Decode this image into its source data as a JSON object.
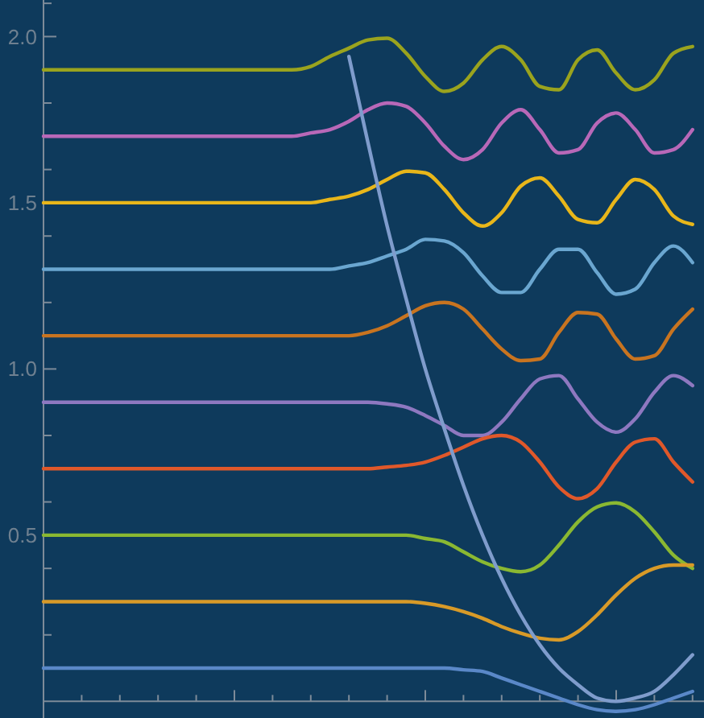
{
  "chart_data": {
    "type": "line",
    "tick_labels": "y",
    "categories": [
      null,
      null,
      null,
      null,
      null,
      null,
      null,
      null,
      null,
      null,
      null,
      null,
      null,
      null,
      null,
      null,
      null,
      null,
      null,
      null,
      null,
      null,
      null,
      null,
      null,
      null,
      null,
      null,
      null,
      null,
      null,
      null,
      null,
      null,
      null
    ],
    "ylim": [
      -0.05,
      2.11
    ],
    "yticks": [
      {
        "value": 0.1,
        "label": null
      },
      {
        "value": 0.2,
        "label": null
      },
      {
        "value": 0.3,
        "label": null
      },
      {
        "value": 0.4,
        "label": null
      },
      {
        "value": 0.5,
        "label": "0.5"
      },
      {
        "value": 0.6,
        "label": null
      },
      {
        "value": 0.7,
        "label": null
      },
      {
        "value": 0.8,
        "label": null
      },
      {
        "value": 0.9,
        "label": null
      },
      {
        "value": 1.0,
        "label": "1.0"
      },
      {
        "value": 1.1,
        "label": null
      },
      {
        "value": 1.2,
        "label": null
      },
      {
        "value": 1.3,
        "label": null
      },
      {
        "value": 1.4,
        "label": null
      },
      {
        "value": 1.5,
        "label": "1.5"
      },
      {
        "value": 1.6,
        "label": null
      },
      {
        "value": 1.7,
        "label": null
      },
      {
        "value": 1.8,
        "label": null
      },
      {
        "value": 1.9,
        "label": null
      },
      {
        "value": 2.0,
        "label": "2.0"
      },
      {
        "value": 2.1,
        "label": null
      }
    ],
    "series": [
      {
        "color": "#9aa31e",
        "values": [
          1.9,
          1.9,
          1.9,
          1.9,
          1.9,
          1.9,
          1.9,
          1.9,
          1.9,
          1.9,
          1.9,
          1.9,
          1.9,
          1.9,
          1.91,
          1.94,
          1.965,
          1.99,
          1.995,
          1.95,
          1.88,
          1.835,
          1.86,
          1.93,
          1.97,
          1.93,
          1.85,
          1.84,
          1.93,
          1.96,
          1.89,
          1.84,
          1.87,
          1.95,
          1.97
        ]
      },
      {
        "color": "#b868b8",
        "values": [
          1.7,
          1.7,
          1.7,
          1.7,
          1.7,
          1.7,
          1.7,
          1.7,
          1.7,
          1.7,
          1.7,
          1.7,
          1.7,
          1.7,
          1.71,
          1.72,
          1.745,
          1.78,
          1.8,
          1.79,
          1.74,
          1.67,
          1.63,
          1.66,
          1.74,
          1.78,
          1.72,
          1.65,
          1.66,
          1.74,
          1.77,
          1.72,
          1.65,
          1.66,
          1.72
        ]
      },
      {
        "color": "#e8b61a",
        "values": [
          1.5,
          1.5,
          1.5,
          1.5,
          1.5,
          1.5,
          1.5,
          1.5,
          1.5,
          1.5,
          1.5,
          1.5,
          1.5,
          1.5,
          1.5,
          1.51,
          1.52,
          1.54,
          1.57,
          1.595,
          1.59,
          1.54,
          1.47,
          1.43,
          1.47,
          1.55,
          1.575,
          1.52,
          1.45,
          1.44,
          1.51,
          1.57,
          1.54,
          1.46,
          1.435
        ]
      },
      {
        "color": "#6aa6d0",
        "values": [
          1.3,
          1.3,
          1.3,
          1.3,
          1.3,
          1.3,
          1.3,
          1.3,
          1.3,
          1.3,
          1.3,
          1.3,
          1.3,
          1.3,
          1.3,
          1.3,
          1.31,
          1.32,
          1.34,
          1.36,
          1.39,
          1.385,
          1.35,
          1.28,
          1.23,
          1.23,
          1.3,
          1.36,
          1.36,
          1.29,
          1.225,
          1.24,
          1.32,
          1.37,
          1.32
        ]
      },
      {
        "color": "#c87420",
        "values": [
          1.1,
          1.1,
          1.1,
          1.1,
          1.1,
          1.1,
          1.1,
          1.1,
          1.1,
          1.1,
          1.1,
          1.1,
          1.1,
          1.1,
          1.1,
          1.1,
          1.1,
          1.11,
          1.13,
          1.16,
          1.19,
          1.2,
          1.18,
          1.12,
          1.06,
          1.025,
          1.03,
          1.11,
          1.17,
          1.165,
          1.09,
          1.03,
          1.04,
          1.12,
          1.18
        ]
      },
      {
        "color": "#8e78c0",
        "values": [
          0.9,
          0.9,
          0.9,
          0.9,
          0.9,
          0.9,
          0.9,
          0.9,
          0.9,
          0.9,
          0.9,
          0.9,
          0.9,
          0.9,
          0.9,
          0.9,
          0.9,
          0.9,
          0.895,
          0.885,
          0.86,
          0.83,
          0.8,
          0.8,
          0.84,
          0.91,
          0.97,
          0.98,
          0.91,
          0.84,
          0.81,
          0.85,
          0.93,
          0.98,
          0.95
        ]
      },
      {
        "color": "#e0582a",
        "values": [
          0.7,
          0.7,
          0.7,
          0.7,
          0.7,
          0.7,
          0.7,
          0.7,
          0.7,
          0.7,
          0.7,
          0.7,
          0.7,
          0.7,
          0.7,
          0.7,
          0.7,
          0.7,
          0.705,
          0.71,
          0.72,
          0.74,
          0.765,
          0.79,
          0.8,
          0.78,
          0.72,
          0.645,
          0.61,
          0.64,
          0.72,
          0.78,
          0.79,
          0.72,
          0.66
        ]
      },
      {
        "color": "#8ab832",
        "values": [
          0.5,
          0.5,
          0.5,
          0.5,
          0.5,
          0.5,
          0.5,
          0.5,
          0.5,
          0.5,
          0.5,
          0.5,
          0.5,
          0.5,
          0.5,
          0.5,
          0.5,
          0.5,
          0.5,
          0.5,
          0.49,
          0.48,
          0.45,
          0.42,
          0.4,
          0.39,
          0.41,
          0.47,
          0.54,
          0.585,
          0.597,
          0.57,
          0.51,
          0.44,
          0.4
        ]
      },
      {
        "color": "#d89a28",
        "values": [
          0.3,
          0.3,
          0.3,
          0.3,
          0.3,
          0.3,
          0.3,
          0.3,
          0.3,
          0.3,
          0.3,
          0.3,
          0.3,
          0.3,
          0.3,
          0.3,
          0.3,
          0.3,
          0.3,
          0.3,
          0.295,
          0.285,
          0.27,
          0.25,
          0.225,
          0.205,
          0.19,
          0.185,
          0.21,
          0.26,
          0.32,
          0.37,
          0.4,
          0.41,
          0.41
        ]
      },
      {
        "color": "#5a88c8",
        "values": [
          0.1,
          0.1,
          0.1,
          0.1,
          0.1,
          0.1,
          0.1,
          0.1,
          0.1,
          0.1,
          0.1,
          0.1,
          0.1,
          0.1,
          0.1,
          0.1,
          0.1,
          0.1,
          0.1,
          0.1,
          0.1,
          0.1,
          0.095,
          0.09,
          0.07,
          0.05,
          0.03,
          0.01,
          -0.01,
          -0.025,
          -0.03,
          -0.025,
          -0.01,
          0.01,
          0.03
        ]
      },
      {
        "color": "#7f9ccc",
        "values": [
          null,
          null,
          null,
          null,
          null,
          null,
          null,
          null,
          null,
          null,
          null,
          null,
          null,
          null,
          null,
          null,
          1.94,
          1.68,
          1.43,
          1.21,
          1.0,
          0.82,
          0.65,
          0.5,
          0.37,
          0.26,
          0.17,
          0.1,
          0.05,
          0.01,
          0.0,
          0.01,
          0.03,
          0.08,
          0.14
        ]
      }
    ]
  }
}
